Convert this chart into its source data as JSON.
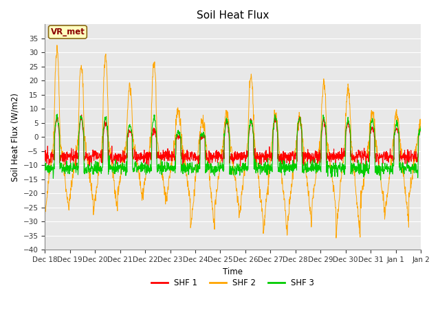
{
  "title": "Soil Heat Flux",
  "ylabel": "Soil Heat Flux (W/m2)",
  "xlabel": "Time",
  "ylim": [
    -40,
    40
  ],
  "yticks": [
    -40,
    -35,
    -30,
    -25,
    -20,
    -15,
    -10,
    -5,
    0,
    5,
    10,
    15,
    20,
    25,
    30,
    35
  ],
  "xtick_labels": [
    "Dec 18",
    "Dec 19",
    "Dec 20",
    "Dec 21",
    "Dec 22",
    "Dec 23",
    "Dec 24",
    "Dec 25",
    "Dec 26",
    "Dec 27",
    "Dec 28",
    "Dec 29",
    "Dec 30",
    "Dec 31",
    "Jan 1",
    "Jan 2"
  ],
  "legend_labels": [
    "SHF 1",
    "SHF 2",
    "SHF 3"
  ],
  "annotation_text": "VR_met",
  "annotation_fg": "#8B0000",
  "annotation_bg": "#FFFFC0",
  "annotation_edge": "#8B6914",
  "fig_bg": "#ffffff",
  "plot_bg": "#e8e8e8",
  "grid_color": "#ffffff",
  "shf1_color": "#ff0000",
  "shf2_color": "#ffa500",
  "shf3_color": "#00cc00",
  "n_days": 15.5,
  "seed": 12345,
  "shf2_day_peaks": [
    30,
    25,
    29,
    18,
    26,
    10,
    5,
    9,
    21,
    7,
    6,
    19,
    16,
    9,
    8,
    5
  ],
  "shf2_night_mins": [
    -27,
    -23,
    -27,
    -20,
    -23,
    -23,
    -33,
    -25,
    -30,
    -35,
    -31,
    -25,
    -35,
    -25,
    -30,
    -22
  ],
  "shf1_day_peaks": [
    7,
    7,
    5,
    2,
    3,
    0,
    0,
    6,
    6,
    7,
    7,
    6,
    5,
    3,
    3,
    2
  ],
  "shf3_day_peaks": [
    7,
    7,
    7,
    4,
    7,
    2,
    1,
    6,
    6,
    7,
    7,
    7,
    6,
    6,
    5,
    3
  ],
  "shf1_night": -7,
  "shf3_night": -11
}
